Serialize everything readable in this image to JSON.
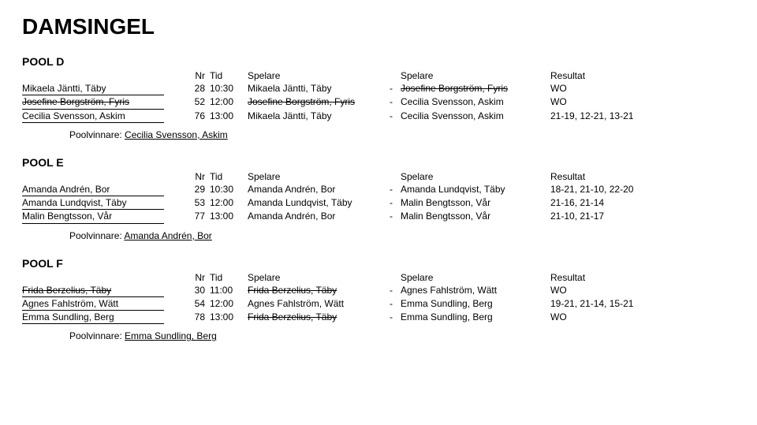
{
  "title": "DAMSINGEL",
  "columns": {
    "nr": "Nr",
    "tid": "Tid",
    "spelare": "Spelare",
    "resultat": "Resultat"
  },
  "winner_label": "Poolvinnare: ",
  "sep": "-",
  "pools": [
    {
      "name": "POOL D",
      "players": [
        {
          "name": "Mikaela Jäntti, Täby",
          "strike": false
        },
        {
          "name": "Josefine Borgström, Fyris",
          "strike": true
        },
        {
          "name": "Cecilia Svensson, Askim",
          "strike": false
        }
      ],
      "matches": [
        {
          "nr": "28",
          "tid": "10:30",
          "p1": "Mikaela Jäntti, Täby",
          "p1s": false,
          "p2": "Josefine Borgström, Fyris",
          "p2s": true,
          "res": "WO"
        },
        {
          "nr": "52",
          "tid": "12:00",
          "p1": "Josefine Borgström, Fyris",
          "p1s": true,
          "p2": "Cecilia Svensson, Askim",
          "p2s": false,
          "res": "WO"
        },
        {
          "nr": "76",
          "tid": "13:00",
          "p1": "Mikaela Jäntti, Täby",
          "p1s": false,
          "p2": "Cecilia Svensson, Askim",
          "p2s": false,
          "res": "21-19, 12-21, 13-21"
        }
      ],
      "winner": "Cecilia Svensson, Askim"
    },
    {
      "name": "POOL E",
      "players": [
        {
          "name": "Amanda Andrén, Bor",
          "strike": false
        },
        {
          "name": "Amanda Lundqvist, Täby",
          "strike": false
        },
        {
          "name": "Malin Bengtsson, Vår",
          "strike": false
        }
      ],
      "matches": [
        {
          "nr": "29",
          "tid": "10:30",
          "p1": "Amanda Andrén, Bor",
          "p1s": false,
          "p2": "Amanda Lundqvist, Täby",
          "p2s": false,
          "res": "18-21, 21-10, 22-20"
        },
        {
          "nr": "53",
          "tid": "12:00",
          "p1": "Amanda Lundqvist, Täby",
          "p1s": false,
          "p2": "Malin Bengtsson, Vår",
          "p2s": false,
          "res": "21-16, 21-14"
        },
        {
          "nr": "77",
          "tid": "13:00",
          "p1": "Amanda Andrén, Bor",
          "p1s": false,
          "p2": "Malin Bengtsson, Vår",
          "p2s": false,
          "res": "21-10, 21-17"
        }
      ],
      "winner": "Amanda Andrén, Bor"
    },
    {
      "name": "POOL F",
      "players": [
        {
          "name": "Frida Berzelius, Täby",
          "strike": true
        },
        {
          "name": "Agnes Fahlström, Wätt",
          "strike": false
        },
        {
          "name": "Emma Sundling, Berg",
          "strike": false
        }
      ],
      "matches": [
        {
          "nr": "30",
          "tid": "11:00",
          "p1": "Frida Berzelius, Täby",
          "p1s": true,
          "p2": "Agnes Fahlström, Wätt",
          "p2s": false,
          "res": "WO"
        },
        {
          "nr": "54",
          "tid": "12:00",
          "p1": "Agnes Fahlström, Wätt",
          "p1s": false,
          "p2": "Emma Sundling, Berg",
          "p2s": false,
          "res": "19-21, 21-14, 15-21"
        },
        {
          "nr": "78",
          "tid": "13:00",
          "p1": "Frida Berzelius, Täby",
          "p1s": true,
          "p2": "Emma Sundling, Berg",
          "p2s": false,
          "res": "WO"
        }
      ],
      "winner": "Emma Sundling, Berg"
    }
  ]
}
